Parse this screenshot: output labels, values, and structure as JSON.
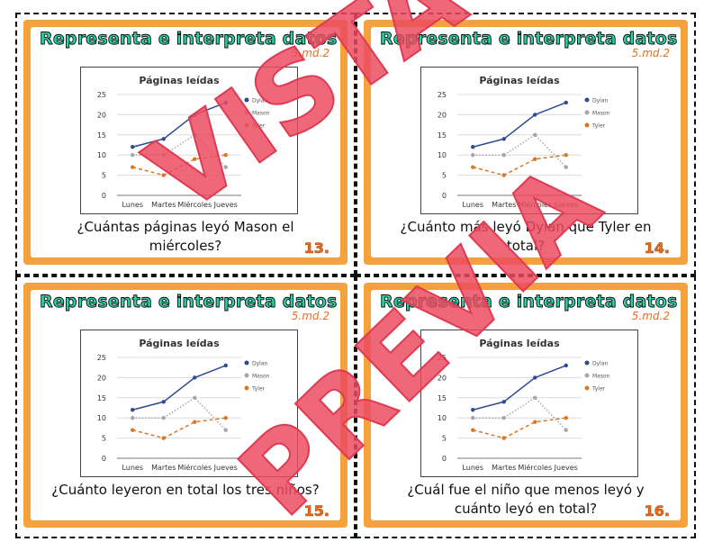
{
  "cards": [
    {
      "title": "Representa e interpreta datos",
      "standard": "5.md.2",
      "question": "¿Cuántas páginas leyó Mason el miércoles?",
      "number": "13."
    },
    {
      "title": "Representa e interpreta datos",
      "standard": "5.md.2",
      "question": "¿Cuánto más leyó Dylan que Tyler en total?",
      "number": "14."
    },
    {
      "title": "Representa e interpreta datos",
      "standard": "5.md.2",
      "question": "¿Cuánto leyeron en total los tres niños?",
      "number": "15."
    },
    {
      "title": "Representa e interpreta datos",
      "standard": "5.md.2",
      "question": "¿Cuál fue el niño que menos leyó y cuánto leyó en total?",
      "number": "16."
    }
  ],
  "watermark": {
    "line1": "VISTA",
    "line2": "PREVIA"
  },
  "chart_data": {
    "type": "line",
    "title": "Páginas leídas",
    "categories": [
      "Lunes",
      "Martes",
      "Miércoles",
      "Jueves"
    ],
    "ylim": [
      0,
      25
    ],
    "yticks": [
      0,
      5,
      10,
      15,
      20,
      25
    ],
    "grid": true,
    "legend": "right",
    "series": [
      {
        "name": "Dylan",
        "values": [
          12,
          14,
          20,
          23
        ],
        "color": "#2f4b8f",
        "style": "solid"
      },
      {
        "name": "Mason",
        "values": [
          10,
          10,
          15,
          7
        ],
        "color": "#a6a6a6",
        "style": "dotted"
      },
      {
        "name": "Tyler",
        "values": [
          7,
          5,
          9,
          10
        ],
        "color": "#d5782a",
        "style": "dashed"
      }
    ]
  }
}
